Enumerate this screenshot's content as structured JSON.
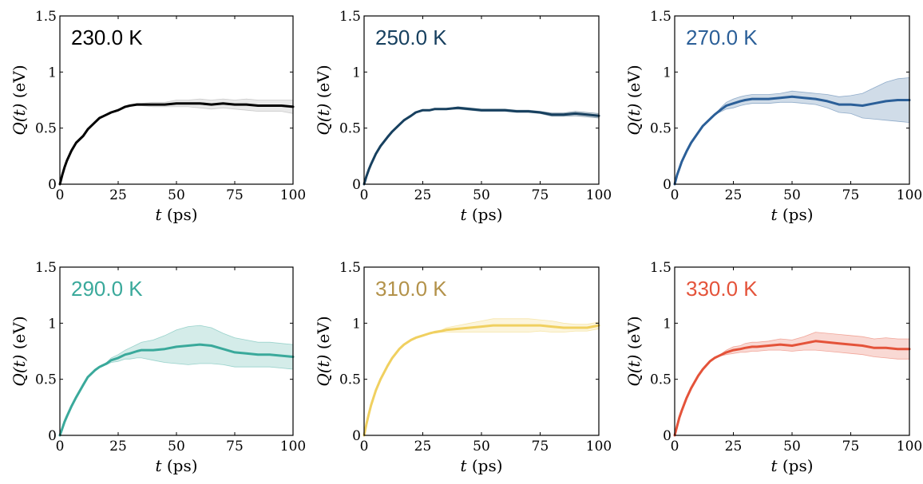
{
  "chart_data": [
    {
      "type": "line",
      "title": "230.0 K",
      "title_color": "#000000",
      "band_color": "#9a9a9a",
      "xlabel_var": "t",
      "xlabel_unit": "(ps)",
      "ylabel_var": "Q(t)",
      "ylabel_unit": "(eV)",
      "xlim": [
        0,
        100
      ],
      "ylim": [
        0,
        1.5
      ],
      "xticks": [
        "0",
        "25",
        "50",
        "75",
        "100"
      ],
      "yticks": [
        "0",
        "0.5",
        "1",
        "1.5"
      ],
      "x": [
        0,
        1,
        2,
        3,
        5,
        7,
        10,
        12,
        15,
        17,
        20,
        22,
        25,
        28,
        30,
        33,
        35,
        40,
        45,
        50,
        55,
        60,
        65,
        70,
        75,
        80,
        85,
        90,
        95,
        100
      ],
      "y": [
        0,
        0.08,
        0.15,
        0.21,
        0.3,
        0.37,
        0.43,
        0.49,
        0.55,
        0.59,
        0.62,
        0.64,
        0.66,
        0.69,
        0.7,
        0.71,
        0.71,
        0.71,
        0.71,
        0.72,
        0.72,
        0.72,
        0.71,
        0.72,
        0.71,
        0.71,
        0.7,
        0.7,
        0.7,
        0.69
      ],
      "band_halfwidth": [
        0,
        0,
        0,
        0,
        0,
        0,
        0,
        0,
        0,
        0,
        0,
        0,
        0,
        0,
        0,
        0.01,
        0.01,
        0.02,
        0.02,
        0.03,
        0.03,
        0.04,
        0.04,
        0.04,
        0.04,
        0.05,
        0.05,
        0.05,
        0.05,
        0.06
      ]
    },
    {
      "type": "line",
      "title": "250.0 K",
      "title_color": "#17405f",
      "band_color": "#17405f",
      "xlabel_var": "t",
      "xlabel_unit": "(ps)",
      "ylabel_var": "Q(t)",
      "ylabel_unit": "(eV)",
      "xlim": [
        0,
        100
      ],
      "ylim": [
        0,
        1.5
      ],
      "xticks": [
        "0",
        "25",
        "50",
        "75",
        "100"
      ],
      "yticks": [
        "0",
        "0.5",
        "1",
        "1.5"
      ],
      "x": [
        0,
        1,
        2,
        3,
        5,
        7,
        10,
        12,
        15,
        17,
        20,
        22,
        25,
        28,
        30,
        33,
        35,
        40,
        45,
        50,
        55,
        60,
        65,
        70,
        75,
        80,
        85,
        90,
        95,
        100
      ],
      "y": [
        0,
        0.07,
        0.13,
        0.18,
        0.27,
        0.34,
        0.42,
        0.47,
        0.53,
        0.57,
        0.61,
        0.64,
        0.66,
        0.66,
        0.67,
        0.67,
        0.67,
        0.68,
        0.67,
        0.66,
        0.66,
        0.66,
        0.65,
        0.65,
        0.64,
        0.62,
        0.62,
        0.63,
        0.62,
        0.61
      ],
      "band_halfwidth": [
        0,
        0,
        0,
        0,
        0,
        0,
        0,
        0,
        0,
        0,
        0,
        0,
        0,
        0,
        0,
        0.005,
        0.005,
        0.01,
        0.01,
        0.01,
        0.01,
        0.01,
        0.01,
        0.01,
        0.01,
        0.015,
        0.015,
        0.02,
        0.02,
        0.02
      ]
    },
    {
      "type": "line",
      "title": "270.0 K",
      "title_color": "#2b5f98",
      "band_color": "#2b5f98",
      "xlabel_var": "t",
      "xlabel_unit": "(ps)",
      "ylabel_var": "Q(t)",
      "ylabel_unit": "(eV)",
      "xlim": [
        0,
        100
      ],
      "ylim": [
        0,
        1.5
      ],
      "xticks": [
        "0",
        "25",
        "50",
        "75",
        "100"
      ],
      "yticks": [
        "0",
        "0.5",
        "1",
        "1.5"
      ],
      "x": [
        0,
        1,
        2,
        3,
        5,
        7,
        10,
        12,
        15,
        17,
        20,
        22,
        25,
        28,
        30,
        33,
        35,
        40,
        45,
        50,
        55,
        60,
        65,
        70,
        75,
        80,
        85,
        90,
        95,
        100
      ],
      "y": [
        0,
        0.08,
        0.14,
        0.2,
        0.29,
        0.37,
        0.46,
        0.52,
        0.58,
        0.62,
        0.67,
        0.7,
        0.72,
        0.74,
        0.75,
        0.76,
        0.76,
        0.76,
        0.77,
        0.78,
        0.77,
        0.76,
        0.74,
        0.71,
        0.71,
        0.7,
        0.72,
        0.74,
        0.75,
        0.75
      ],
      "band_halfwidth": [
        0,
        0,
        0,
        0,
        0,
        0,
        0,
        0,
        0,
        0,
        0.02,
        0.03,
        0.04,
        0.04,
        0.04,
        0.04,
        0.04,
        0.04,
        0.04,
        0.05,
        0.05,
        0.05,
        0.06,
        0.07,
        0.08,
        0.11,
        0.14,
        0.17,
        0.19,
        0.2
      ]
    },
    {
      "type": "line",
      "title": "290.0 K",
      "title_color": "#3aa99b",
      "band_color": "#3aa99b",
      "xlabel_var": "t",
      "xlabel_unit": "(ps)",
      "ylabel_var": "Q(t)",
      "ylabel_unit": "(eV)",
      "xlim": [
        0,
        100
      ],
      "ylim": [
        0,
        1.5
      ],
      "xticks": [
        "0",
        "25",
        "50",
        "75",
        "100"
      ],
      "yticks": [
        "0",
        "0.5",
        "1",
        "1.5"
      ],
      "x": [
        0,
        1,
        2,
        3,
        5,
        7,
        10,
        12,
        15,
        17,
        20,
        22,
        25,
        28,
        30,
        33,
        35,
        40,
        45,
        50,
        55,
        60,
        65,
        70,
        75,
        80,
        85,
        90,
        95,
        100
      ],
      "y": [
        0,
        0.06,
        0.12,
        0.17,
        0.26,
        0.34,
        0.45,
        0.52,
        0.58,
        0.61,
        0.64,
        0.67,
        0.69,
        0.72,
        0.73,
        0.75,
        0.76,
        0.76,
        0.77,
        0.79,
        0.8,
        0.81,
        0.8,
        0.77,
        0.74,
        0.73,
        0.72,
        0.72,
        0.71,
        0.7
      ],
      "band_halfwidth": [
        0,
        0,
        0,
        0,
        0,
        0,
        0,
        0,
        0,
        0,
        0.01,
        0.02,
        0.03,
        0.04,
        0.05,
        0.06,
        0.07,
        0.09,
        0.12,
        0.15,
        0.17,
        0.17,
        0.16,
        0.14,
        0.13,
        0.12,
        0.11,
        0.11,
        0.11,
        0.11
      ]
    },
    {
      "type": "line",
      "title": "310.0 K",
      "title_color": "#b3924a",
      "band_color": "#f0d060",
      "xlabel_var": "t",
      "xlabel_unit": "(ps)",
      "ylabel_var": "Q(t)",
      "ylabel_unit": "(eV)",
      "xlim": [
        0,
        100
      ],
      "ylim": [
        0,
        1.5
      ],
      "xticks": [
        "0",
        "25",
        "50",
        "75",
        "100"
      ],
      "yticks": [
        "0",
        "0.5",
        "1",
        "1.5"
      ],
      "x": [
        0,
        1,
        2,
        3,
        5,
        7,
        10,
        12,
        15,
        17,
        20,
        22,
        25,
        28,
        30,
        33,
        35,
        40,
        45,
        50,
        55,
        60,
        65,
        70,
        75,
        80,
        85,
        90,
        95,
        100
      ],
      "y": [
        0,
        0.1,
        0.19,
        0.27,
        0.4,
        0.5,
        0.62,
        0.69,
        0.77,
        0.81,
        0.85,
        0.87,
        0.89,
        0.91,
        0.92,
        0.93,
        0.94,
        0.95,
        0.96,
        0.97,
        0.98,
        0.98,
        0.98,
        0.98,
        0.98,
        0.97,
        0.96,
        0.96,
        0.96,
        0.98
      ],
      "band_halfwidth": [
        0,
        0,
        0,
        0,
        0,
        0,
        0,
        0,
        0,
        0,
        0,
        0,
        0,
        0,
        0.01,
        0.01,
        0.02,
        0.03,
        0.04,
        0.05,
        0.06,
        0.06,
        0.06,
        0.06,
        0.05,
        0.05,
        0.04,
        0.03,
        0.03,
        0.03
      ]
    },
    {
      "type": "line",
      "title": "330.0 K",
      "title_color": "#e4533a",
      "band_color": "#e4533a",
      "xlabel_var": "t",
      "xlabel_unit": "(ps)",
      "ylabel_var": "Q(t)",
      "ylabel_unit": "(eV)",
      "xlim": [
        0,
        100
      ],
      "ylim": [
        0,
        1.5
      ],
      "xticks": [
        "0",
        "25",
        "50",
        "75",
        "100"
      ],
      "yticks": [
        "0",
        "0.5",
        "1",
        "1.5"
      ],
      "x": [
        0,
        1,
        2,
        3,
        5,
        7,
        10,
        12,
        15,
        17,
        20,
        22,
        25,
        28,
        30,
        33,
        35,
        40,
        45,
        50,
        55,
        60,
        65,
        70,
        75,
        80,
        85,
        90,
        95,
        100
      ],
      "y": [
        0,
        0.08,
        0.16,
        0.22,
        0.33,
        0.42,
        0.53,
        0.59,
        0.66,
        0.69,
        0.72,
        0.74,
        0.76,
        0.77,
        0.78,
        0.79,
        0.79,
        0.8,
        0.81,
        0.8,
        0.82,
        0.84,
        0.83,
        0.82,
        0.81,
        0.8,
        0.78,
        0.78,
        0.77,
        0.77
      ],
      "band_halfwidth": [
        0,
        0,
        0,
        0,
        0,
        0,
        0,
        0,
        0,
        0,
        0.01,
        0.02,
        0.03,
        0.03,
        0.04,
        0.04,
        0.04,
        0.04,
        0.05,
        0.05,
        0.06,
        0.08,
        0.08,
        0.08,
        0.08,
        0.08,
        0.08,
        0.09,
        0.09,
        0.09
      ]
    }
  ]
}
